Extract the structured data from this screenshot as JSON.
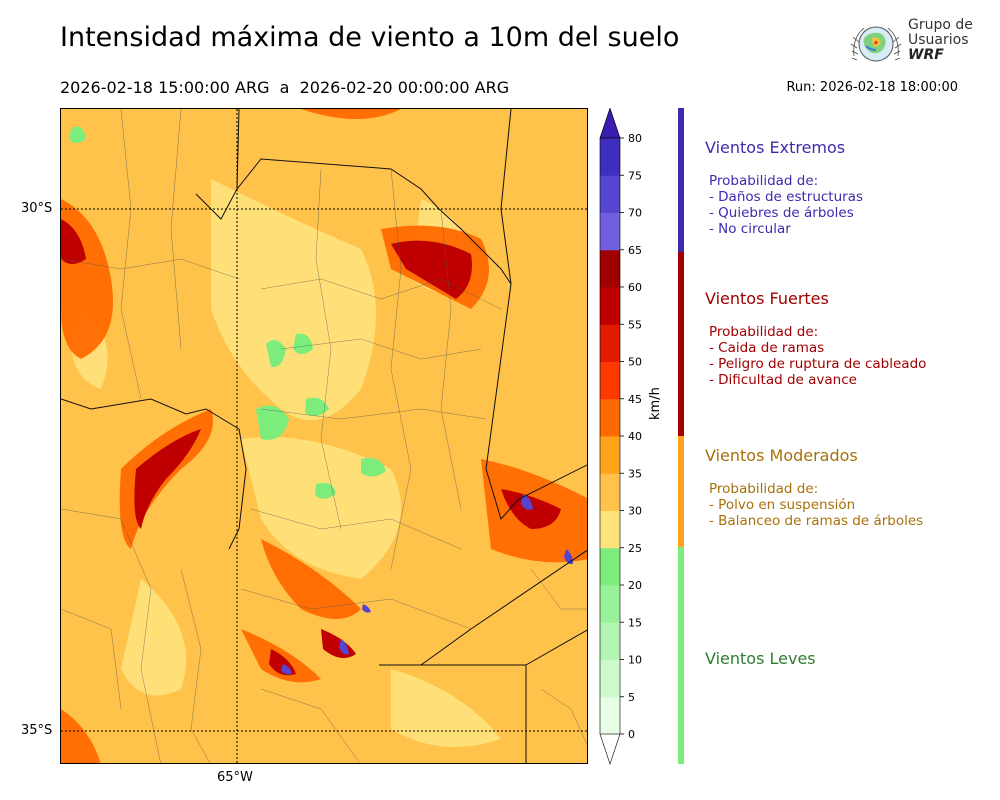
{
  "title": "Intensidad máxima de viento a 10m del suelo",
  "range": "2026-02-18 15:00:00 ARG  a  2026-02-20 00:00:00 ARG",
  "run": "Run: 2026-02-18 18:00:00",
  "logo": {
    "line1": "Grupo de",
    "line2": "Usuarios",
    "line3": "WRF"
  },
  "map": {
    "lat_labels": [
      "30°S",
      "35°S"
    ],
    "lon_labels": [
      "65°W"
    ]
  },
  "colorbar": {
    "unit": "km/h",
    "ticks": [
      0,
      5,
      10,
      15,
      20,
      25,
      30,
      35,
      40,
      45,
      50,
      55,
      60,
      65,
      70,
      75,
      80
    ],
    "colors": [
      "#e6fde6",
      "#cdfacd",
      "#b3f6b3",
      "#99f199",
      "#7ced7c",
      "#ffe27a",
      "#ffc24a",
      "#ffa41a",
      "#ff6a00",
      "#ff3a00",
      "#e21a00",
      "#c00000",
      "#a00000",
      "#7060e0",
      "#5545d0",
      "#3f2fc0"
    ],
    "under_color": "#ffffff",
    "over_color": "#3a1db0"
  },
  "categories": [
    {
      "title": "Vientos Extremos",
      "color": "#3b2bb0",
      "desc": [
        "Probabilidad de:",
        "- Daños de estructuras",
        "- Quiebres de árboles",
        "- No circular"
      ]
    },
    {
      "title": "Vientos Fuertes",
      "color": "#a00000",
      "desc": [
        "Probabilidad de:",
        "- Caida de ramas",
        "- Peligro de ruptura de cableado",
        "- Dificultad de avance"
      ]
    },
    {
      "title": "Vientos Moderados",
      "color": "#a8700a",
      "desc": [
        "Probabilidad de:",
        "- Polvo en suspensión",
        "- Balanceo de ramas de árboles"
      ]
    },
    {
      "title": "Vientos Leves",
      "color": "#2e7d32",
      "desc": []
    }
  ],
  "category_bar_colors": [
    "#3b2bb0",
    "#a00000",
    "#ffa41a",
    "#7ced7c"
  ]
}
